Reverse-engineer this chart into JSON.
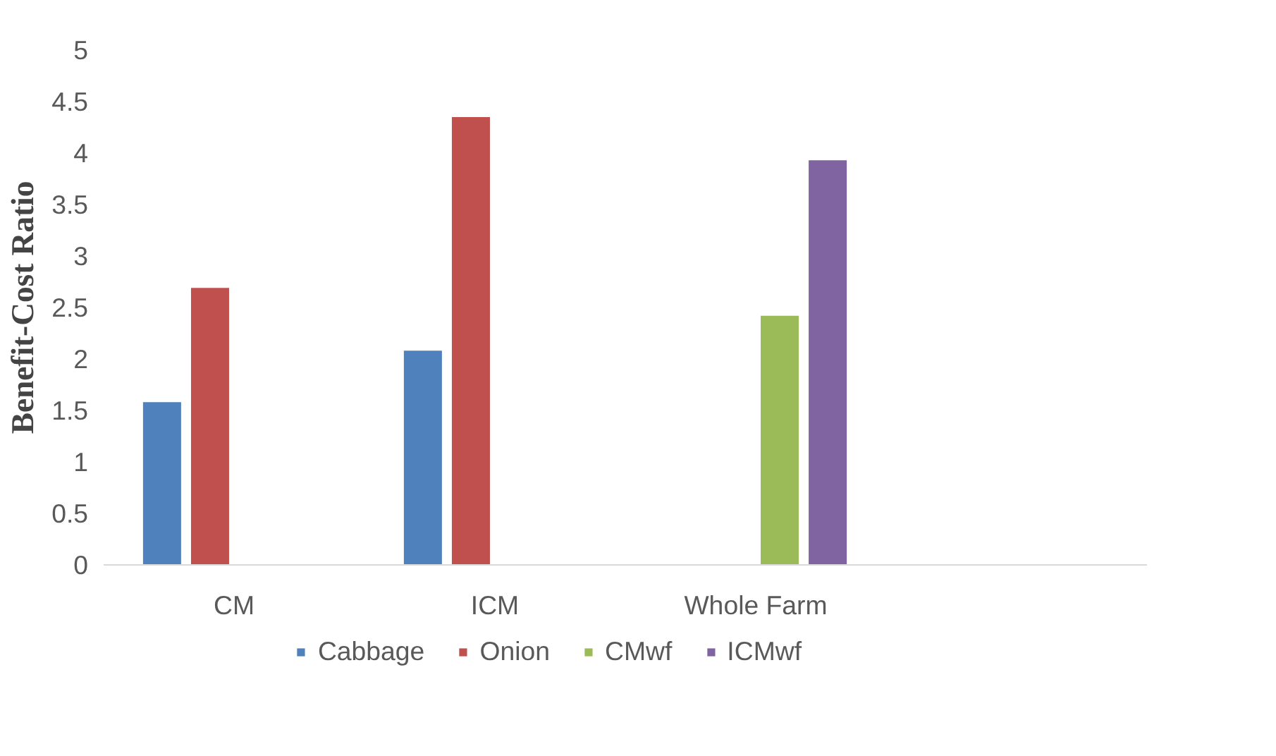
{
  "chart_data": {
    "type": "bar",
    "ylabel": "Benefit-Cost Ratio",
    "categories": [
      "CM",
      "ICM",
      "Whole Farm",
      null
    ],
    "series": [
      {
        "name": "Cabbage",
        "color": "#4f81bd",
        "values": [
          1.58,
          2.08,
          null,
          null
        ]
      },
      {
        "name": "Onion",
        "color": "#c0504d",
        "values": [
          2.69,
          4.35,
          null,
          null
        ]
      },
      {
        "name": "CMwf",
        "color": "#9bbb59",
        "values": [
          null,
          null,
          2.42,
          null
        ]
      },
      {
        "name": "ICMwf",
        "color": "#8064a2",
        "values": [
          null,
          null,
          3.93,
          null
        ]
      }
    ],
    "ylim": [
      0,
      5
    ],
    "yticks": [
      0,
      0.5,
      1,
      1.5,
      2,
      2.5,
      3,
      3.5,
      4,
      4.5,
      5
    ],
    "grid": false,
    "legend": "bottom"
  }
}
